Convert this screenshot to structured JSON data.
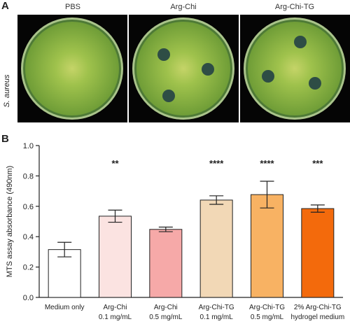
{
  "panel_a": {
    "letter": "A",
    "columns": [
      "PBS",
      "Arg-Chi",
      "Arg-Chi-TG"
    ],
    "row_label": "S. aureus",
    "plate_colors": {
      "rim": "#c9d9a0",
      "agar": "#8fb83a",
      "center": "#c8d86a",
      "zone": "#2c4a43"
    }
  },
  "panel_b": {
    "letter": "B"
  },
  "chart_data": {
    "type": "bar",
    "ylabel": "MTS assay absorbance (490nm)",
    "xlabel": "",
    "ylim": [
      0,
      1.0
    ],
    "yticks": [
      "0.0",
      "0.2",
      "0.4",
      "0.6",
      "0.8",
      "1.0"
    ],
    "categories": [
      [
        "Medium only",
        ""
      ],
      [
        "Arg-Chi",
        "0.1 mg/mL"
      ],
      [
        "Arg-Chi",
        "0.5 mg/mL"
      ],
      [
        "Arg-Chi-TG",
        "0.1 mg/mL"
      ],
      [
        "Arg-Chi-TG",
        "0.5 mg/mL"
      ],
      [
        "2% Arg-Chi-TG",
        "hydrogel medium"
      ]
    ],
    "values": [
      0.315,
      0.535,
      0.448,
      0.641,
      0.677,
      0.585
    ],
    "errors": [
      0.048,
      0.04,
      0.015,
      0.028,
      0.088,
      0.024
    ],
    "significance": [
      "",
      "**",
      "",
      "****",
      "****",
      "***"
    ],
    "colors": [
      "#ffffff",
      "#fbe3e1",
      "#f6a9a8",
      "#f2d8b6",
      "#f8b263",
      "#f36a0c"
    ],
    "grid": false
  }
}
